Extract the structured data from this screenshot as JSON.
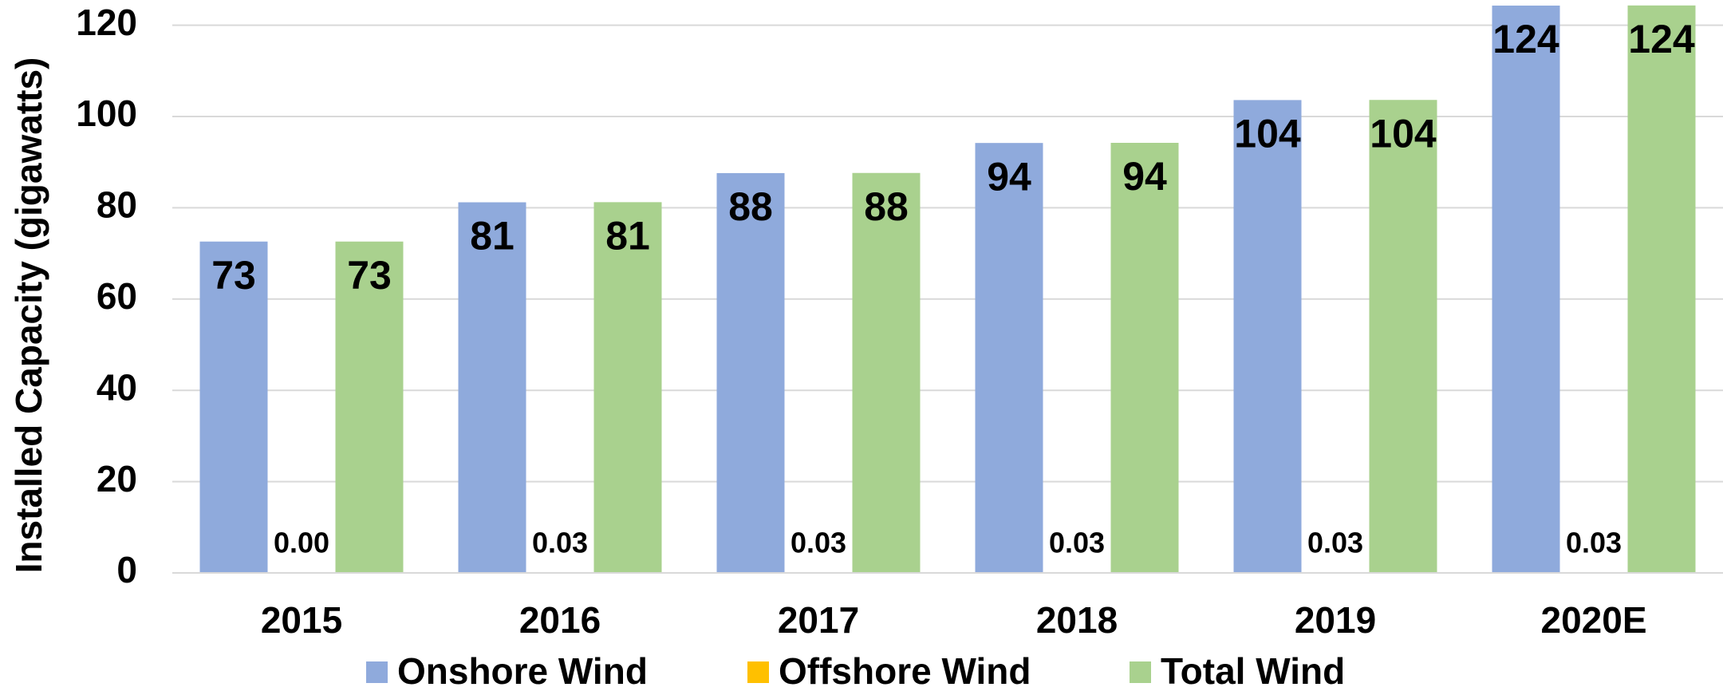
{
  "chart_data": {
    "type": "bar",
    "y_label": "Installed Capacity (gigawatts)",
    "categories": [
      "2015",
      "2016",
      "2017",
      "2018",
      "2019",
      "2020E"
    ],
    "series": [
      {
        "name": "Onshore Wind",
        "color": "#8faadc",
        "values": [
          72.6,
          81.2,
          87.6,
          94.2,
          103.6,
          124.3
        ],
        "value_labels": [
          "73",
          "81",
          "88",
          "94",
          "104",
          "124"
        ]
      },
      {
        "name": "Offshore Wind",
        "color": "#ffc000",
        "values": [
          0,
          0.03,
          0.03,
          0.03,
          0.03,
          0.03
        ],
        "value_labels": [
          "0.00",
          "0.03",
          "0.03",
          "0.03",
          "0.03",
          "0.03"
        ]
      },
      {
        "name": "Total Wind",
        "color": "#a9d18e",
        "values": [
          72.6,
          81.23,
          87.63,
          94.23,
          103.63,
          124.33
        ],
        "value_labels": [
          "73",
          "81",
          "88",
          "94",
          "104",
          "124"
        ]
      }
    ],
    "ylim": [
      0,
      125
    ],
    "yticks": [
      0,
      20,
      40,
      60,
      80,
      100,
      120
    ],
    "grid": true,
    "legend": "bottom"
  }
}
